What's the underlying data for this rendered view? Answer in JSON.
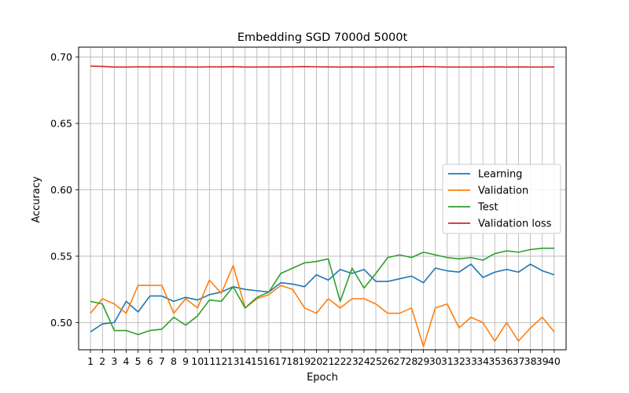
{
  "chart_data": {
    "type": "line",
    "title": "Embedding SGD 7000d 5000t",
    "xlabel": "Epoch",
    "ylabel": "Accuracy",
    "x": [
      1,
      2,
      3,
      4,
      5,
      6,
      7,
      8,
      9,
      10,
      11,
      12,
      13,
      14,
      15,
      16,
      17,
      18,
      19,
      20,
      21,
      22,
      23,
      24,
      25,
      26,
      27,
      28,
      29,
      30,
      31,
      32,
      33,
      34,
      35,
      36,
      37,
      38,
      39,
      40
    ],
    "xticks": [
      "1",
      "2",
      "3",
      "4",
      "5",
      "6",
      "7",
      "8",
      "9",
      "10",
      "11",
      "12",
      "13",
      "14",
      "15",
      "16",
      "17",
      "18",
      "19",
      "20",
      "21",
      "22",
      "23",
      "24",
      "25",
      "26",
      "27",
      "28",
      "29",
      "30",
      "31",
      "32",
      "33",
      "34",
      "35",
      "36",
      "37",
      "38",
      "39",
      "40"
    ],
    "yticks": [
      "0.50",
      "0.55",
      "0.60",
      "0.65",
      "0.70"
    ],
    "ylim": [
      0.4795,
      0.7075
    ],
    "xlim": [
      0.0,
      41.0
    ],
    "grid": true,
    "legend_position": "center-right",
    "series": [
      {
        "name": "Learning",
        "color": "#1f77b4",
        "values": [
          0.493,
          0.499,
          0.5,
          0.516,
          0.508,
          0.52,
          0.52,
          0.516,
          0.519,
          0.517,
          0.521,
          0.523,
          0.527,
          0.525,
          0.524,
          0.523,
          0.53,
          0.529,
          0.527,
          0.536,
          0.532,
          0.54,
          0.537,
          0.54,
          0.531,
          0.531,
          0.533,
          0.535,
          0.53,
          0.541,
          0.539,
          0.538,
          0.544,
          0.534,
          0.538,
          0.54,
          0.538,
          0.544,
          0.539,
          0.536
        ]
      },
      {
        "name": "Validation",
        "color": "#ff7f0e",
        "values": [
          0.507,
          0.518,
          0.514,
          0.507,
          0.528,
          0.528,
          0.528,
          0.507,
          0.518,
          0.511,
          0.532,
          0.522,
          0.543,
          0.511,
          0.518,
          0.521,
          0.528,
          0.525,
          0.511,
          0.507,
          0.518,
          0.511,
          0.518,
          0.518,
          0.514,
          0.507,
          0.507,
          0.511,
          0.482,
          0.511,
          0.514,
          0.496,
          0.504,
          0.5,
          0.486,
          0.5,
          0.486,
          0.496,
          0.504,
          0.493
        ]
      },
      {
        "name": "Test",
        "color": "#2ca02c",
        "values": [
          0.516,
          0.514,
          0.494,
          0.494,
          0.491,
          0.494,
          0.495,
          0.504,
          0.498,
          0.505,
          0.517,
          0.516,
          0.527,
          0.511,
          0.519,
          0.523,
          0.537,
          0.541,
          0.545,
          0.546,
          0.548,
          0.516,
          0.541,
          0.526,
          0.537,
          0.549,
          0.551,
          0.549,
          0.553,
          0.551,
          0.549,
          0.548,
          0.549,
          0.547,
          0.552,
          0.554,
          0.553,
          0.555,
          0.556,
          0.556
        ]
      },
      {
        "name": "Validation loss",
        "color": "#d62728",
        "values": [
          0.6932,
          0.693,
          0.6925,
          0.6925,
          0.6927,
          0.6926,
          0.6927,
          0.6926,
          0.6926,
          0.6925,
          0.6927,
          0.6926,
          0.6928,
          0.6925,
          0.6925,
          0.6926,
          0.6926,
          0.6927,
          0.6929,
          0.6927,
          0.6926,
          0.6925,
          0.6926,
          0.6925,
          0.6925,
          0.6926,
          0.6926,
          0.6926,
          0.6929,
          0.6927,
          0.6925,
          0.6925,
          0.6925,
          0.6925,
          0.6926,
          0.6925,
          0.6926,
          0.6925,
          0.6925,
          0.6926
        ]
      }
    ]
  }
}
